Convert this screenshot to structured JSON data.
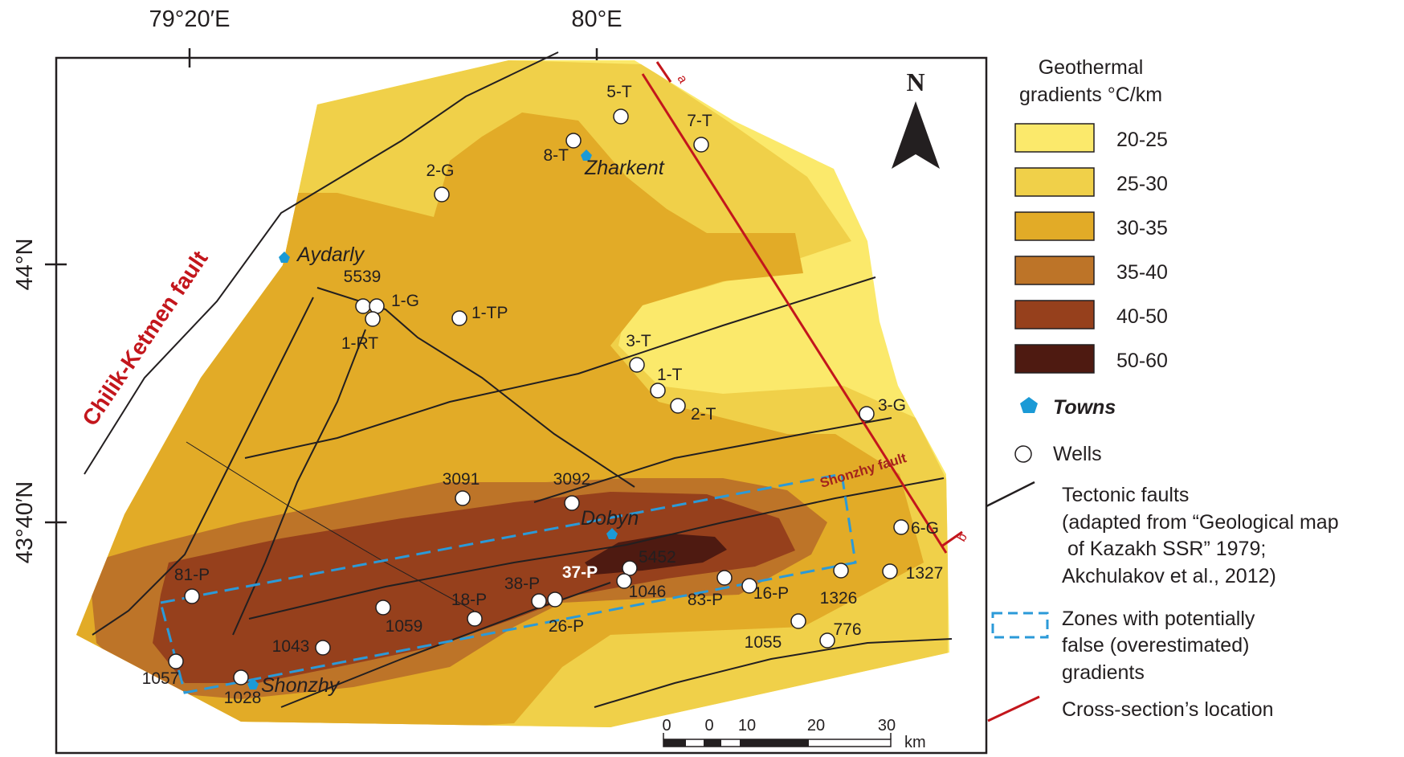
{
  "coordinates": {
    "top": [
      "79°20′E",
      "80°E"
    ],
    "left": [
      "44°N",
      "43°40′N"
    ]
  },
  "north_label": "N",
  "fault_labels": {
    "chilik_ketmen": "Chilik-Ketmen fault",
    "shonzhy": "Shonzhy fault"
  },
  "section_ends": [
    "a",
    "b"
  ],
  "towns": [
    "Zharkent",
    "Aydarly",
    "Dobyn",
    "Shonzhy"
  ],
  "wells": [
    "5-T",
    "7-T",
    "8-T",
    "2-G",
    "5539",
    "1-G",
    "1-RT",
    "1-TP",
    "3-T",
    "1-T",
    "2-T",
    "3-G",
    "3091",
    "3092",
    "6-G",
    "5452",
    "37-P",
    "1046",
    "38-P",
    "26-P",
    "18-P",
    "1059",
    "1043",
    "81-P",
    "1057",
    "1028",
    "83-P",
    "16-P",
    "1326",
    "1327",
    "1055",
    "776"
  ],
  "scale": {
    "ticks": [
      "0",
      "10",
      "20",
      "30"
    ],
    "inner_tick": "0",
    "unit": "km"
  },
  "legend": {
    "title_line1": "Geothermal",
    "title_line2": "gradients °C/km",
    "classes": [
      {
        "label": "20-25",
        "color": "#fbe96b"
      },
      {
        "label": "25-30",
        "color": "#f0d049"
      },
      {
        "label": "30-35",
        "color": "#e2ab27"
      },
      {
        "label": "35-40",
        "color": "#bd7428"
      },
      {
        "label": "40-50",
        "color": "#96401c"
      },
      {
        "label": "50-60",
        "color": "#4e1a11"
      }
    ],
    "towns_label": "Towns",
    "wells_label": "Wells",
    "faults_lines": [
      "Tectonic faults",
      "(adapted from “Geological map",
      " of Kazakh SSR” 1979;",
      "Akchulakov et al., 2012)"
    ],
    "zones_lines": [
      "Zones with potentially",
      "false (overestimated)",
      "gradients"
    ],
    "cross_section_label": "Cross-section’s location"
  },
  "colors": {
    "town_marker": "#1b9ad6",
    "cross_section": "#c3161c",
    "zone_outline": "#2b9ad8",
    "fault": "#231f20"
  }
}
